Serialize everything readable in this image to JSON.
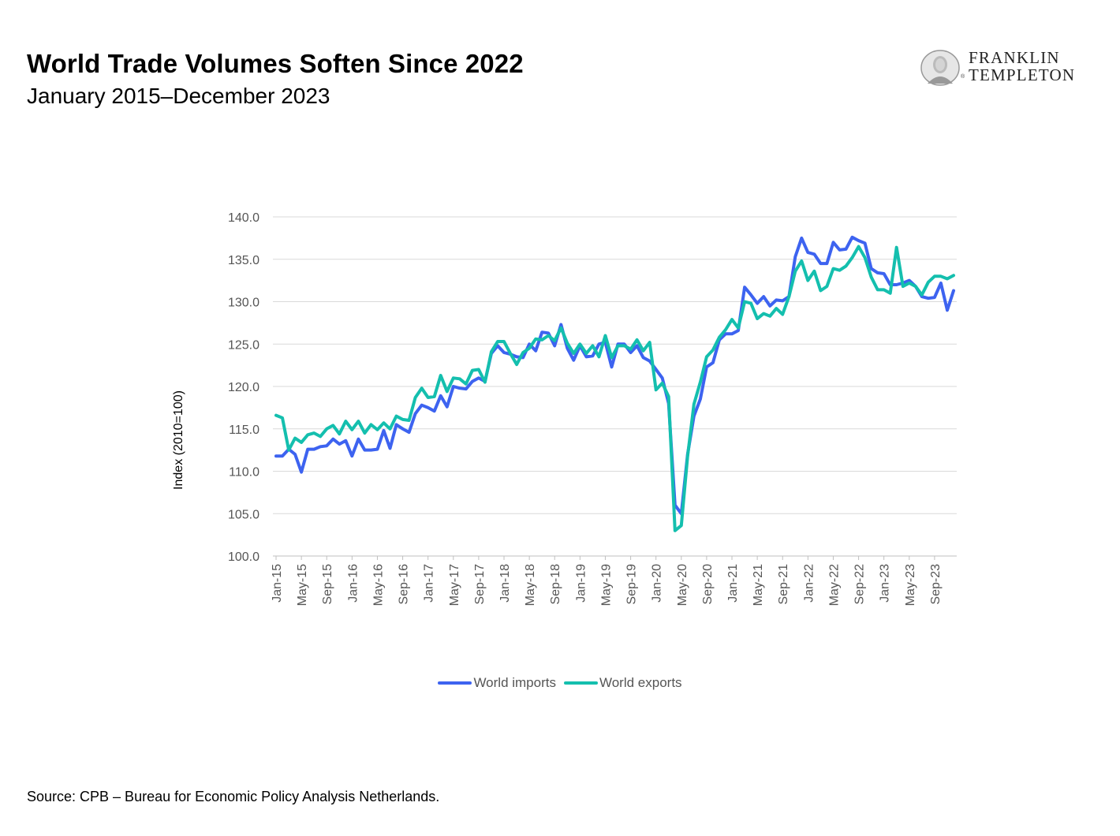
{
  "header": {
    "title": "World Trade Volumes Soften Since 2022",
    "subtitle": "January 2015–December 2023"
  },
  "logo": {
    "line1": "FRANKLIN",
    "line2": "TEMPLETON",
    "reg_mark": "®",
    "icon": "portrait-icon"
  },
  "footer": {
    "source": "Source: CPB – Bureau for Economic Policy Analysis Netherlands."
  },
  "chart_data": {
    "type": "line",
    "title": "",
    "ylabel": "Index (2010=100)",
    "xlabel": "",
    "ylim": [
      100,
      140
    ],
    "yticks": [
      "100.0",
      "105.0",
      "110.0",
      "115.0",
      "120.0",
      "125.0",
      "130.0",
      "135.0",
      "140.0"
    ],
    "xticks": [
      "Jan-15",
      "May-15",
      "Sep-15",
      "Jan-16",
      "May-16",
      "Sep-16",
      "Jan-17",
      "May-17",
      "Sep-17",
      "Jan-18",
      "May-18",
      "Sep-18",
      "Jan-19",
      "May-19",
      "Sep-19",
      "Jan-20",
      "May-20",
      "Sep-20",
      "Jan-21",
      "May-21",
      "Sep-21",
      "Jan-22",
      "May-22",
      "Sep-22",
      "Jan-23",
      "May-23",
      "Sep-23"
    ],
    "x_start": "Jan-15",
    "x_end": "Dec-23",
    "grid": true,
    "legend_position": "bottom",
    "series": [
      {
        "name": "World imports",
        "color": "#3d63f0",
        "values": [
          111.8,
          111.8,
          112.6,
          112.0,
          109.9,
          112.6,
          112.6,
          112.9,
          113.0,
          113.8,
          113.2,
          113.6,
          111.8,
          113.8,
          112.5,
          112.5,
          112.6,
          114.8,
          112.7,
          115.5,
          115.0,
          114.6,
          116.8,
          117.8,
          117.5,
          117.1,
          118.9,
          117.6,
          120.0,
          119.8,
          119.7,
          120.6,
          121.0,
          120.6,
          123.9,
          124.8,
          124.0,
          123.8,
          123.5,
          123.4,
          125.0,
          124.2,
          126.4,
          126.3,
          124.8,
          127.3,
          124.5,
          123.1,
          124.8,
          123.5,
          123.6,
          125.0,
          125.2,
          122.3,
          125.0,
          125.0,
          124.0,
          124.8,
          123.4,
          123.0,
          122.0,
          121.0,
          118.0,
          106.0,
          105.0,
          112.0,
          116.5,
          118.5,
          122.3,
          122.8,
          125.5,
          126.2,
          126.2,
          126.6,
          131.7,
          130.8,
          129.8,
          130.6,
          129.5,
          130.2,
          130.1,
          130.6,
          135.3,
          137.5,
          135.8,
          135.6,
          134.5,
          134.5,
          137.0,
          136.1,
          136.2,
          137.6,
          137.2,
          136.9,
          133.9,
          133.4,
          133.3,
          132.0,
          132.0,
          132.2,
          132.5,
          131.8,
          130.6,
          130.4,
          130.5,
          132.2,
          129.0,
          131.3
        ]
      },
      {
        "name": "World exports",
        "color": "#14bfae",
        "values": [
          116.6,
          116.3,
          112.5,
          113.9,
          113.4,
          114.3,
          114.5,
          114.1,
          115.0,
          115.4,
          114.4,
          115.9,
          114.9,
          115.9,
          114.5,
          115.5,
          114.9,
          115.7,
          115.0,
          116.5,
          116.1,
          116.0,
          118.7,
          119.8,
          118.7,
          118.8,
          121.3,
          119.4,
          121.0,
          120.9,
          120.3,
          121.9,
          122.0,
          120.5,
          124.1,
          125.3,
          125.3,
          123.9,
          122.6,
          124.0,
          124.5,
          125.6,
          125.5,
          126.0,
          125.4,
          126.9,
          125.1,
          123.9,
          125.0,
          123.9,
          124.8,
          123.5,
          126.0,
          123.4,
          124.8,
          124.8,
          124.4,
          125.5,
          124.2,
          125.2,
          119.6,
          120.4,
          118.8,
          103.0,
          103.6,
          111.8,
          117.9,
          120.5,
          123.5,
          124.3,
          125.8,
          126.7,
          127.9,
          126.9,
          130.0,
          129.8,
          128.0,
          128.6,
          128.3,
          129.2,
          128.5,
          130.6,
          133.6,
          134.8,
          132.5,
          133.6,
          131.3,
          131.8,
          133.9,
          133.7,
          134.2,
          135.2,
          136.5,
          135.2,
          132.9,
          131.4,
          131.4,
          131.0,
          136.4,
          131.8,
          132.2,
          131.8,
          130.8,
          132.3,
          133.0,
          133.0,
          132.7,
          133.1
        ]
      }
    ]
  }
}
